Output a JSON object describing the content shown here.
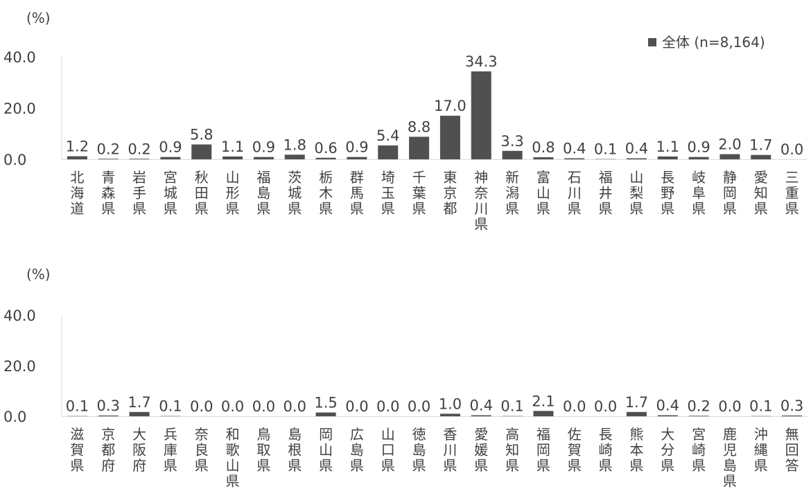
{
  "unit": "(%)",
  "legend": {
    "label": "全体 (n=8,164)",
    "color": "#505050"
  },
  "bar_color": "#505050",
  "axis_color": "#d9d9d9",
  "chart_data": [
    {
      "type": "bar",
      "legend_position": "top-right",
      "grid": false,
      "ylim": [
        0,
        40
      ],
      "yticks": [
        "0.0",
        "20.0",
        "40.0"
      ],
      "categories": [
        "北海道",
        "青森県",
        "岩手県",
        "宮城県",
        "秋田県",
        "山形県",
        "福島県",
        "茨城県",
        "栃木県",
        "群馬県",
        "埼玉県",
        "千葉県",
        "東京都",
        "神奈川県",
        "新潟県",
        "富山県",
        "石川県",
        "福井県",
        "山梨県",
        "長野県",
        "岐阜県",
        "静岡県",
        "愛知県",
        "三重県"
      ],
      "series": [
        {
          "name": "全体 (n=8,164)",
          "values": [
            1.2,
            0.2,
            0.2,
            0.9,
            5.8,
            1.1,
            0.9,
            1.8,
            0.6,
            0.9,
            5.4,
            8.8,
            17.0,
            34.3,
            3.3,
            0.8,
            0.4,
            0.1,
            0.4,
            1.1,
            0.9,
            2.0,
            1.7,
            0.0
          ],
          "labels": [
            "1.2",
            "0.2",
            "0.2",
            "0.9",
            "5.8",
            "1.1",
            "0.9",
            "1.8",
            "0.6",
            "0.9",
            "5.4",
            "8.8",
            "17.0",
            "34.3",
            "3.3",
            "0.8",
            "0.4",
            "0.1",
            "0.4",
            "1.1",
            "0.9",
            "2.0",
            "1.7",
            "0.0"
          ]
        }
      ]
    },
    {
      "type": "bar",
      "grid": false,
      "ylim": [
        0,
        40
      ],
      "yticks": [
        "0.0",
        "20.0",
        "40.0"
      ],
      "categories": [
        "滋賀県",
        "京都府",
        "大阪府",
        "兵庫県",
        "奈良県",
        "和歌山県",
        "鳥取県",
        "島根県",
        "岡山県",
        "広島県",
        "山口県",
        "徳島県",
        "香川県",
        "愛媛県",
        "高知県",
        "福岡県",
        "佐賀県",
        "長崎県",
        "熊本県",
        "大分県",
        "宮崎県",
        "鹿児島県",
        "沖縄県",
        "無回答"
      ],
      "series": [
        {
          "name": "全体 (n=8,164)",
          "values": [
            0.1,
            0.3,
            1.7,
            0.1,
            0.0,
            0.0,
            0.0,
            0.0,
            1.5,
            0.0,
            0.0,
            0.0,
            1.0,
            0.4,
            0.1,
            2.1,
            0.0,
            0.0,
            1.7,
            0.4,
            0.2,
            0.0,
            0.1,
            0.3
          ],
          "labels": [
            "0.1",
            "0.3",
            "1.7",
            "0.1",
            "0.0",
            "0.0",
            "0.0",
            "0.0",
            "1.5",
            "0.0",
            "0.0",
            "0.0",
            "1.0",
            "0.4",
            "0.1",
            "2.1",
            "0.0",
            "0.0",
            "1.7",
            "0.4",
            "0.2",
            "0.0",
            "0.1",
            "0.3"
          ]
        }
      ]
    }
  ]
}
